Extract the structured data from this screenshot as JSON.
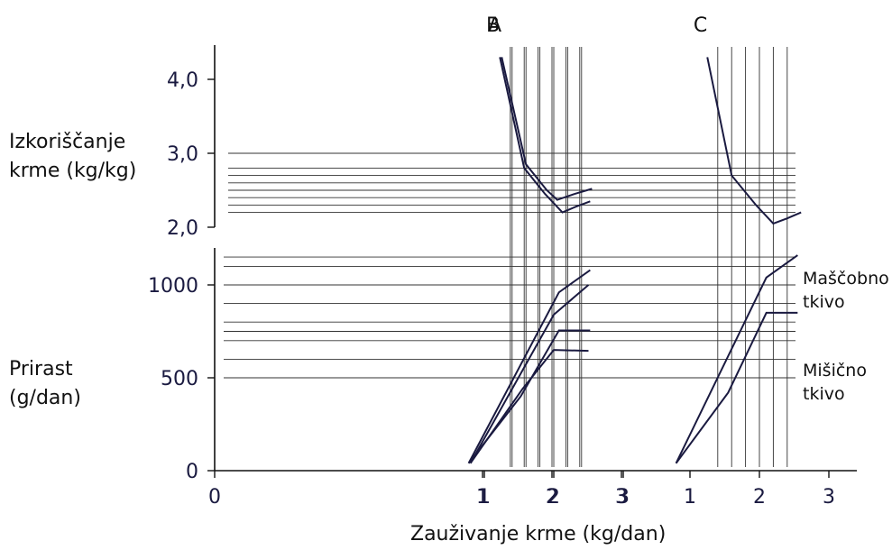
{
  "chart_data": {
    "type": "line",
    "xlabel": "Zauživanje krme (kg/dan)",
    "ylabel_top": "Izkoriščanje krme (kg/kg)",
    "ylabel_bottom": "Prirast (g/dan)",
    "x_ticks": [
      "0",
      "1",
      "2",
      "3"
    ],
    "xlim": [
      0,
      3
    ],
    "top_y_ticks": [
      "2,0",
      "3,0",
      "4,0"
    ],
    "top_ylim": [
      2.0,
      4.0
    ],
    "bottom_y_ticks": [
      "0",
      "500",
      "1000"
    ],
    "bottom_ylim": [
      0,
      1000
    ],
    "grid": true,
    "panels": [
      {
        "name": "A",
        "efficiency": {
          "x": [
            1.25,
            1.6,
            1.9,
            2.05,
            2.3,
            2.55
          ],
          "y": [
            4.3,
            2.85,
            2.5,
            2.37,
            2.45,
            2.52
          ]
        },
        "series": [
          {
            "name": "Maščobno tkivo",
            "x": [
              0.8,
              2.0,
              2.5
            ],
            "y": [
              40,
              840,
              1000
            ]
          },
          {
            "name": "Mišično tkivo",
            "x": [
              0.8,
              1.55,
              2.0,
              2.5
            ],
            "y": [
              40,
              440,
              650,
              645
            ]
          }
        ]
      },
      {
        "name": "B",
        "efficiency": {
          "x": [
            1.25,
            1.6,
            1.9,
            2.15,
            2.35,
            2.55
          ],
          "y": [
            4.3,
            2.8,
            2.45,
            2.2,
            2.28,
            2.35
          ]
        },
        "series": [
          {
            "name": "Maščobno tkivo",
            "x": [
              0.8,
              2.1,
              2.55
            ],
            "y": [
              40,
              960,
              1080
            ]
          },
          {
            "name": "Mišično tkivo",
            "x": [
              0.8,
              1.55,
              2.1,
              2.55
            ],
            "y": [
              40,
              400,
              755,
              755
            ]
          }
        ]
      },
      {
        "name": "C",
        "efficiency": {
          "x": [
            1.25,
            1.6,
            1.95,
            2.2,
            2.4,
            2.6
          ],
          "y": [
            4.3,
            2.7,
            2.3,
            2.05,
            2.12,
            2.2
          ]
        },
        "series": [
          {
            "name": "Maščobno tkivo",
            "x": [
              0.8,
              2.1,
              2.55
            ],
            "y": [
              40,
              1040,
              1160
            ]
          },
          {
            "name": "Mišično tkivo",
            "x": [
              0.8,
              1.55,
              2.1,
              2.55
            ],
            "y": [
              40,
              420,
              850,
              850
            ]
          }
        ]
      }
    ],
    "annotations": [
      "Maščobno tkivo",
      "Mišično tkivo"
    ]
  },
  "labels": {
    "ylabel_top_line1": "Izkoriščanje",
    "ylabel_top_line2": "krme (kg/kg)",
    "ylabel_bottom_line1": "Prirast",
    "ylabel_bottom_line2": "(g/dan)",
    "fat_line1": "Maščobno",
    "fat_line2": "tkivo",
    "muscle_line1": "Mišično",
    "muscle_line2": "tkivo"
  },
  "colors": {
    "line": "#1a1a40",
    "grid": "#333333",
    "text": "#111111",
    "axis": "#111111"
  }
}
